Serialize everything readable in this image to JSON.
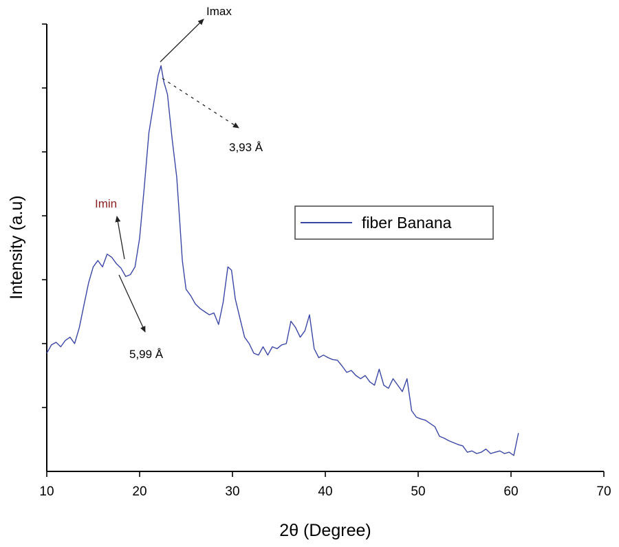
{
  "chart_data": {
    "type": "line",
    "title": "",
    "xlabel": "2θ (Degree)",
    "ylabel": "Intensity (a.u)",
    "xlim": [
      10,
      70
    ],
    "xticks": [
      10,
      20,
      30,
      40,
      50,
      60,
      70
    ],
    "y_tick_count": 7,
    "ylim": [
      0,
      7
    ],
    "grid": false,
    "legend": {
      "position": "center-right",
      "entries": [
        "fiber Banana"
      ]
    },
    "colors": {
      "series": "#3a46a6",
      "axis": "#000000",
      "annotation": "#333333",
      "annotation_label": "#8b2020"
    },
    "series": [
      {
        "name": "fiber Banana",
        "x": [
          10.0,
          10.5,
          11.0,
          11.5,
          12.0,
          12.5,
          13.0,
          13.5,
          14.0,
          14.5,
          15.0,
          15.5,
          16.0,
          16.5,
          17.0,
          17.5,
          18.0,
          18.5,
          19.0,
          19.5,
          20.0,
          20.5,
          21.0,
          21.5,
          22.0,
          22.3,
          22.6,
          23.0,
          23.5,
          24.0,
          24.3,
          24.6,
          25.0,
          25.5,
          26.0,
          26.5,
          27.0,
          27.5,
          28.0,
          28.5,
          29.0,
          29.5,
          29.9,
          30.3,
          30.8,
          31.3,
          31.8,
          32.3,
          32.8,
          33.3,
          33.8,
          34.3,
          34.8,
          35.3,
          35.8,
          36.3,
          36.8,
          37.3,
          37.8,
          38.3,
          38.8,
          39.3,
          39.8,
          40.3,
          40.8,
          41.3,
          41.8,
          42.3,
          42.8,
          43.3,
          43.8,
          44.3,
          44.8,
          45.3,
          45.8,
          46.3,
          46.8,
          47.3,
          47.8,
          48.3,
          48.8,
          49.3,
          49.8,
          50.3,
          50.8,
          51.3,
          51.8,
          52.3,
          52.8,
          53.3,
          53.8,
          54.3,
          54.8,
          55.3,
          55.8,
          56.3,
          56.8,
          57.3,
          57.8,
          58.3,
          58.8,
          59.3,
          59.8,
          60.3,
          60.8
        ],
        "y": [
          1.85,
          1.98,
          2.02,
          1.95,
          2.05,
          2.1,
          2.0,
          2.25,
          2.6,
          2.95,
          3.2,
          3.3,
          3.2,
          3.4,
          3.35,
          3.25,
          3.18,
          3.05,
          3.08,
          3.2,
          3.65,
          4.45,
          5.3,
          5.75,
          6.2,
          6.35,
          6.1,
          5.9,
          5.2,
          4.6,
          3.95,
          3.3,
          2.85,
          2.75,
          2.62,
          2.55,
          2.5,
          2.45,
          2.48,
          2.3,
          2.65,
          3.2,
          3.15,
          2.7,
          2.4,
          2.1,
          2.0,
          1.85,
          1.82,
          1.95,
          1.82,
          1.95,
          1.92,
          1.98,
          2.0,
          2.35,
          2.25,
          2.1,
          2.2,
          2.45,
          1.92,
          1.78,
          1.82,
          1.78,
          1.75,
          1.74,
          1.65,
          1.55,
          1.58,
          1.5,
          1.45,
          1.5,
          1.4,
          1.35,
          1.6,
          1.35,
          1.3,
          1.45,
          1.35,
          1.25,
          1.45,
          0.95,
          0.85,
          0.82,
          0.8,
          0.75,
          0.7,
          0.55,
          0.52,
          0.48,
          0.45,
          0.42,
          0.4,
          0.3,
          0.32,
          0.28,
          0.3,
          0.35,
          0.28,
          0.3,
          0.32,
          0.28,
          0.3,
          0.25,
          0.6
        ]
      }
    ],
    "annotations": [
      {
        "id": "imax",
        "label": "Imax",
        "x": 22.2,
        "y": 6.35,
        "color": "#000000"
      },
      {
        "id": "d393",
        "label": "3,93 Å",
        "x": 22.2,
        "y": 6.35,
        "color": "#000000"
      },
      {
        "id": "imin",
        "label": "Imin",
        "x": 18.5,
        "y": 3.05,
        "color": "#8b2020"
      },
      {
        "id": "d599",
        "label": "5,99 Å",
        "x": 17.5,
        "y": 3.1,
        "color": "#000000"
      }
    ]
  }
}
